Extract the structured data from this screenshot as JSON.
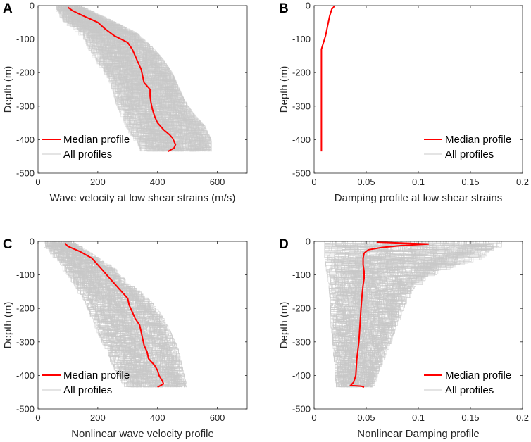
{
  "colors": {
    "median": "#ff0000",
    "all_profiles": "#c8c8c8",
    "axis": "#262626"
  },
  "chart_data": [
    {
      "panel_label": "A",
      "type": "line",
      "title": "",
      "xlabel": "Wave velocity at low shear strains (m/s)",
      "ylabel": "Depth (m)",
      "xlim": [
        0,
        700
      ],
      "ylim": [
        -500,
        0
      ],
      "xticks": [
        0,
        200,
        400,
        600
      ],
      "yticks": [
        0,
        -100,
        -200,
        -300,
        -400,
        -500
      ],
      "legend": {
        "placement": "bottom-left",
        "entries": [
          "Median profile",
          "All profiles"
        ]
      },
      "band": {
        "name": "All profiles",
        "count": 250,
        "top": 0,
        "bottom": -435,
        "left_x": [
          60,
          90,
          150,
          170,
          200,
          230,
          250,
          260,
          280,
          300,
          330,
          350
        ],
        "right_x": [
          145,
          240,
          330,
          380,
          420,
          450,
          470,
          490,
          520,
          560,
          580,
          580
        ],
        "depths": [
          0,
          -40,
          -80,
          -120,
          -160,
          -200,
          -240,
          -280,
          -320,
          -360,
          -400,
          -435
        ]
      },
      "series": [
        {
          "name": "Median profile",
          "depth": [
            -5,
            -15,
            -30,
            -50,
            -70,
            -90,
            -110,
            -130,
            -150,
            -170,
            -190,
            -210,
            -230,
            -250,
            -270,
            -290,
            -310,
            -330,
            -350,
            -370,
            -385,
            -395,
            -405,
            -415,
            -425,
            -435
          ],
          "values": [
            100,
            115,
            150,
            200,
            225,
            255,
            300,
            315,
            325,
            335,
            345,
            350,
            355,
            375,
            375,
            378,
            383,
            390,
            400,
            420,
            440,
            450,
            455,
            460,
            455,
            435
          ]
        }
      ]
    },
    {
      "panel_label": "B",
      "type": "line",
      "title": "",
      "xlabel": "Damping profile at low shear strains",
      "ylabel": "Depth (m)",
      "xlim": [
        0,
        0.2
      ],
      "ylim": [
        -500,
        0
      ],
      "xticks": [
        0,
        0.05,
        0.1,
        0.15,
        0.2
      ],
      "yticks": [
        0,
        -100,
        -200,
        -300,
        -400,
        -500
      ],
      "legend": {
        "placement": "bottom-right",
        "entries": [
          "Median profile",
          "All profiles"
        ]
      },
      "band": null,
      "series": [
        {
          "name": "Median profile",
          "depth": [
            0,
            -10,
            -30,
            -60,
            -90,
            -110,
            -130,
            -200,
            -300,
            -435
          ],
          "values": [
            0.02,
            0.017,
            0.015,
            0.013,
            0.011,
            0.009,
            0.007,
            0.007,
            0.007,
            0.007
          ]
        }
      ]
    },
    {
      "panel_label": "C",
      "type": "line",
      "title": "",
      "xlabel": "Nonlinear wave velocity profile",
      "ylabel": "Depth (m)",
      "xlim": [
        0,
        700
      ],
      "ylim": [
        -500,
        0
      ],
      "xticks": [
        0,
        200,
        400,
        600
      ],
      "yticks": [
        0,
        -100,
        -200,
        -300,
        -400,
        -500
      ],
      "legend": {
        "placement": "bottom-left",
        "entries": [
          "Median profile",
          "All profiles"
        ]
      },
      "band": {
        "name": "All profiles",
        "count": 250,
        "top": 0,
        "bottom": -435,
        "left_x": [
          20,
          60,
          90,
          120,
          150,
          170,
          190,
          210,
          230,
          250,
          270,
          300
        ],
        "right_x": [
          120,
          190,
          260,
          300,
          360,
          400,
          430,
          450,
          470,
          480,
          490,
          500
        ],
        "depths": [
          0,
          -40,
          -80,
          -120,
          -160,
          -200,
          -240,
          -280,
          -320,
          -360,
          -400,
          -435
        ]
      },
      "series": [
        {
          "name": "Median profile",
          "depth": [
            -5,
            -15,
            -30,
            -50,
            -70,
            -90,
            -110,
            -130,
            -150,
            -170,
            -190,
            -210,
            -230,
            -250,
            -270,
            -290,
            -310,
            -330,
            -350,
            -370,
            -385,
            -400,
            -415,
            -425,
            -435
          ],
          "values": [
            90,
            100,
            140,
            180,
            200,
            220,
            240,
            260,
            280,
            300,
            305,
            315,
            325,
            340,
            345,
            350,
            355,
            365,
            370,
            390,
            400,
            405,
            415,
            420,
            400
          ]
        }
      ]
    },
    {
      "panel_label": "D",
      "type": "line",
      "title": "",
      "xlabel": "Nonlinear Damping profile",
      "ylabel": "Depth (m)",
      "xlim": [
        0,
        0.2
      ],
      "ylim": [
        -500,
        0
      ],
      "xticks": [
        0,
        0.05,
        0.1,
        0.15,
        0.2
      ],
      "yticks": [
        0,
        -100,
        -200,
        -300,
        -400,
        -500
      ],
      "legend": {
        "placement": "bottom-right",
        "entries": [
          "Median profile",
          "All profiles"
        ]
      },
      "band": {
        "name": "All profiles",
        "count": 250,
        "top": 0,
        "bottom": -435,
        "left_x": [
          0.01,
          0.01,
          0.012,
          0.014,
          0.015,
          0.016,
          0.016,
          0.018,
          0.018,
          0.02,
          0.02,
          0.022
        ],
        "right_x": [
          0.18,
          0.16,
          0.12,
          0.1,
          0.09,
          0.085,
          0.08,
          0.075,
          0.07,
          0.065,
          0.06,
          0.055
        ],
        "depths": [
          0,
          -40,
          -80,
          -120,
          -160,
          -200,
          -240,
          -280,
          -320,
          -360,
          -400,
          -435
        ]
      },
      "series": [
        {
          "name": "Median profile",
          "depth": [
            -2,
            -5,
            -8,
            -12,
            -18,
            -25,
            -35,
            -50,
            -70,
            -90,
            -110,
            -130,
            -160,
            -200,
            -250,
            -300,
            -350,
            -400,
            -420,
            -430,
            -432,
            -435
          ],
          "values": [
            0.06,
            0.085,
            0.11,
            0.085,
            0.065,
            0.052,
            0.048,
            0.047,
            0.047,
            0.048,
            0.048,
            0.047,
            0.046,
            0.045,
            0.044,
            0.043,
            0.041,
            0.04,
            0.038,
            0.035,
            0.045,
            0.048
          ]
        }
      ]
    }
  ]
}
